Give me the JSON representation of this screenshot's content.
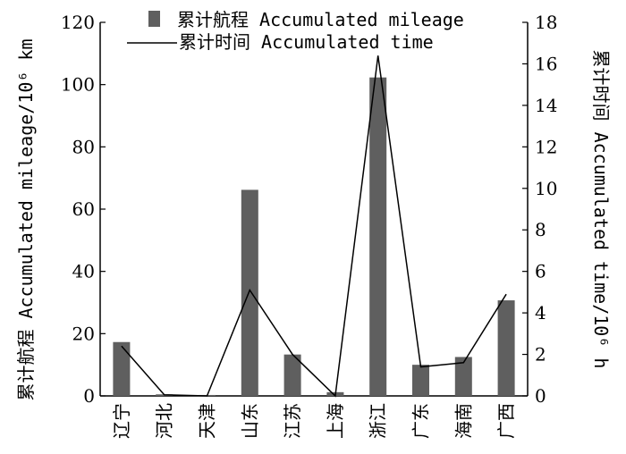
{
  "chart_data": {
    "type": "bar",
    "categories": [
      "辽宁",
      "河北",
      "天津",
      "山东",
      "江苏",
      "上海",
      "浙江",
      "广东",
      "海南",
      "广西"
    ],
    "series": [
      {
        "name": "累计航程 Accumulated mileage",
        "type": "bar",
        "axis": "left",
        "values": [
          17.3,
          0.5,
          0.3,
          66.2,
          13.3,
          1.2,
          102.3,
          10.0,
          12.5,
          30.7
        ]
      },
      {
        "name": "累计时间 Accumulated time",
        "type": "line",
        "axis": "right",
        "values": [
          2.4,
          0.05,
          0.0,
          5.1,
          2.0,
          0.0,
          16.4,
          1.4,
          1.6,
          4.9
        ]
      }
    ],
    "ylabel": "累计航程 Accumulated mileage/10⁶ km",
    "y2label": "累计时间 Accumulated time/10⁶ h",
    "ylim": [
      0,
      120
    ],
    "y2lim": [
      0,
      18
    ],
    "yticks": [
      "0",
      "20",
      "40",
      "60",
      "80",
      "100",
      "120"
    ],
    "y2ticks": [
      "0",
      "2",
      "4",
      "6",
      "8",
      "10",
      "12",
      "14",
      "16",
      "18"
    ],
    "grid": false,
    "legend_position": "top-center",
    "colors": {
      "bar": "#5f5f5f",
      "line": "#000000",
      "axis": "#000000"
    }
  }
}
